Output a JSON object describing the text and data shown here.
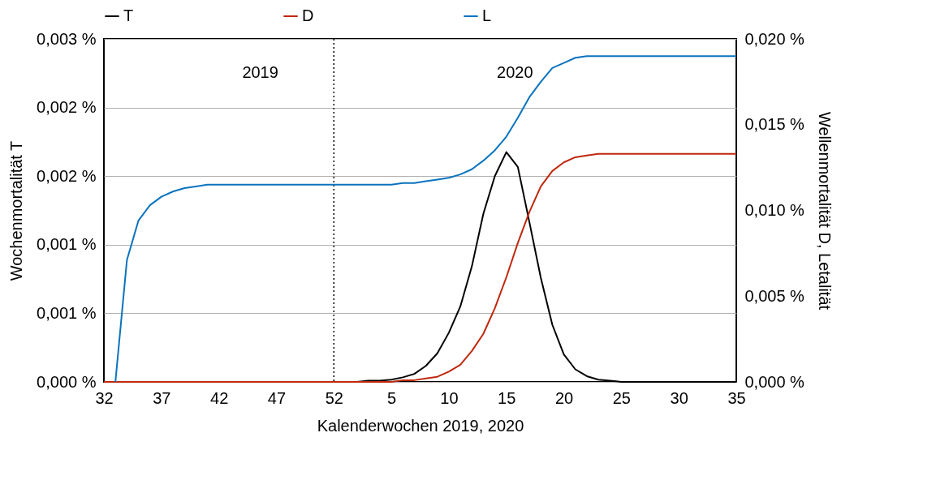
{
  "chart_data": {
    "type": "line",
    "xlabel": "Kalenderwochen 2019, 2020",
    "ylabel": "Wochenmortalität T",
    "y2label": "Wellenmortalität D, Letalität",
    "categories": [
      "32",
      null,
      null,
      null,
      null,
      "37",
      null,
      null,
      null,
      null,
      "42",
      null,
      null,
      null,
      null,
      "47",
      null,
      null,
      null,
      null,
      "52",
      null,
      null,
      null,
      null,
      "5",
      null,
      null,
      null,
      null,
      "10",
      null,
      null,
      null,
      null,
      "15",
      null,
      null,
      null,
      null,
      "20",
      null,
      null,
      null,
      null,
      "25",
      null,
      null,
      null,
      null,
      "30",
      null,
      null,
      null,
      null,
      "35"
    ],
    "ylim": [
      0,
      0.003
    ],
    "yticks": [
      {
        "value": 0,
        "label": "0,000 %"
      },
      {
        "value": 0.0006,
        "label": "0,001 %"
      },
      {
        "value": 0.0012,
        "label": "0,001 %"
      },
      {
        "value": 0.0018,
        "label": "0,002 %"
      },
      {
        "value": 0.0024,
        "label": "0,002 %"
      },
      {
        "value": 0.003,
        "label": "0,003 %"
      }
    ],
    "y2lim": [
      0,
      0.02
    ],
    "y2ticks": [
      {
        "value": 0,
        "label": "0,000 %"
      },
      {
        "value": 0.005,
        "label": "0,005 %"
      },
      {
        "value": 0.01,
        "label": "0,010 %"
      },
      {
        "value": 0.015,
        "label": "0,015 %"
      },
      {
        "value": 0.02,
        "label": "0,020 %"
      }
    ],
    "series": [
      {
        "name": "T",
        "color": "#000000",
        "values": [
          0,
          0,
          0,
          0,
          0,
          0,
          0,
          0,
          0,
          0,
          0,
          0,
          0,
          0,
          0,
          0,
          0,
          0,
          0,
          0,
          0,
          0,
          0,
          1e-05,
          1e-05,
          2e-05,
          4e-05,
          7e-05,
          0.00014,
          0.00025,
          0.00043,
          0.00066,
          0.00101,
          0.00147,
          0.0018,
          0.00201,
          0.00188,
          0.0014,
          0.00091,
          0.0005,
          0.00024,
          0.00011,
          5e-05,
          2e-05,
          1e-05,
          0,
          0,
          0,
          0,
          0,
          0,
          0,
          0,
          0,
          0,
          0
        ]
      },
      {
        "name": "D",
        "color": "#c0280e",
        "axis": "y2",
        "values": [
          0,
          0,
          0,
          0,
          0,
          0,
          0,
          0,
          0,
          0,
          0,
          0,
          0,
          0,
          0,
          0,
          0,
          0,
          0,
          0,
          0,
          0,
          0,
          0,
          0,
          0,
          0.0001,
          0.0001,
          0.0002,
          0.0003,
          0.0006,
          0.001,
          0.0018,
          0.0028,
          0.0043,
          0.0061,
          0.0081,
          0.0099,
          0.0114,
          0.0123,
          0.0128,
          0.0131,
          0.0132,
          0.0133,
          0.0133,
          0.0133,
          0.0133,
          0.0133,
          0.0133,
          0.0133,
          0.0133,
          0.0133,
          0.0133,
          0.0133,
          0.0133,
          0.0133
        ]
      },
      {
        "name": "L",
        "color": "#0a73be",
        "axis": "y2",
        "values": [
          null,
          0,
          0.0071,
          0.0094,
          0.0103,
          0.0108,
          0.0111,
          0.0113,
          0.0114,
          0.0115,
          0.0115,
          0.0115,
          0.0115,
          0.0115,
          0.0115,
          0.0115,
          0.0115,
          0.0115,
          0.0115,
          0.0115,
          0.0115,
          0.0115,
          0.0115,
          0.0115,
          0.0115,
          0.0115,
          0.0116,
          0.0116,
          0.0117,
          0.0118,
          0.0119,
          0.0121,
          0.0124,
          0.0129,
          0.0135,
          0.0143,
          0.0154,
          0.0166,
          0.0175,
          0.0183,
          0.0186,
          0.0189,
          0.019,
          0.019,
          0.019,
          0.019,
          0.019,
          0.019,
          0.019,
          0.019,
          0.019,
          0.019,
          0.019,
          0.019,
          0.019,
          0.019
        ]
      }
    ],
    "ref_lines": [
      {
        "axis": "x",
        "value": "52",
        "color": "#000000",
        "line_style": "dotted"
      }
    ],
    "annotations": [
      "2019",
      "2020"
    ],
    "grid": "y",
    "legend": "top",
    "marker": "none",
    "line_style": "solid"
  }
}
